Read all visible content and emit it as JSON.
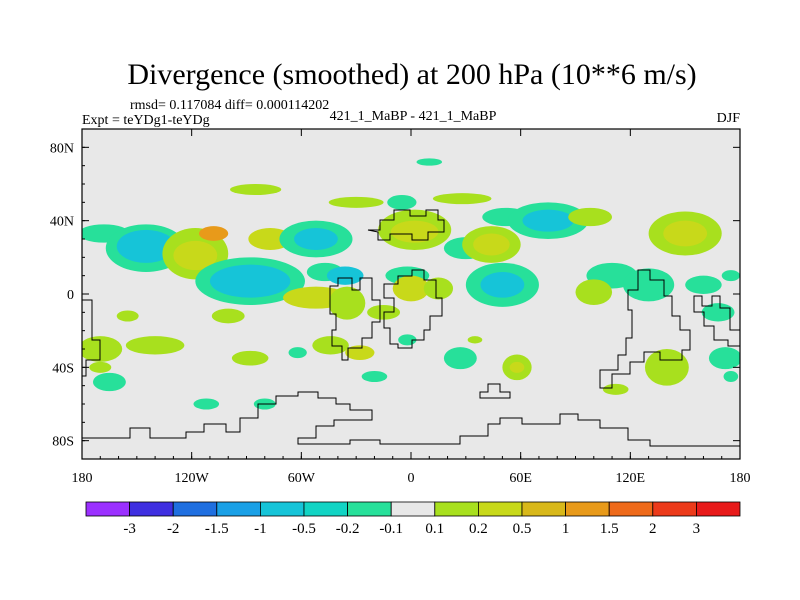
{
  "chart_data": {
    "type": "heatmap",
    "title": "Divergence (smoothed) at 200 hPa (10**6 m/s)",
    "stats_label": "rmsd= 0.117084 diff= 0.000114202",
    "experiment_label": "Expt = teYDg1-teYDg",
    "comparison_label": "421_1_MaBP - 421_1_MaBP",
    "season_label": "DJF",
    "x_range": [
      -180,
      180
    ],
    "y_range": [
      -90,
      90
    ],
    "x_ticks": [
      {
        "value": -180,
        "label": "180"
      },
      {
        "value": -120,
        "label": "120W"
      },
      {
        "value": -60,
        "label": "60W"
      },
      {
        "value": 0,
        "label": "0"
      },
      {
        "value": 60,
        "label": "60E"
      },
      {
        "value": 120,
        "label": "120E"
      },
      {
        "value": 180,
        "label": "180"
      }
    ],
    "y_ticks": [
      {
        "value": 80,
        "label": "80N"
      },
      {
        "value": 40,
        "label": "40N"
      },
      {
        "value": 0,
        "label": "0"
      },
      {
        "value": -40,
        "label": "40S"
      },
      {
        "value": -80,
        "label": "80S"
      }
    ],
    "colorbar": {
      "colors": [
        "#9b30ff",
        "#3f2fe0",
        "#1f6fe0",
        "#1aa0e6",
        "#16c4d8",
        "#11d4c4",
        "#27e09a",
        "#e8e8e8",
        "#a8e01e",
        "#c8d91a",
        "#d8b81a",
        "#e89a1a",
        "#ee6a1a",
        "#ec3a1a",
        "#e81a1a"
      ],
      "boundaries": [
        "-3",
        "-2",
        "-1.5",
        "-1",
        "-0.5",
        "-0.2",
        "-0.1",
        "0.1",
        "0.2",
        "0.5",
        "1",
        "1.5",
        "2",
        "3"
      ]
    },
    "blobs": [
      {
        "lon": -168,
        "lat": 33,
        "rx": 14,
        "ry": 5,
        "color": "#27e09a"
      },
      {
        "lon": -145,
        "lat": 25,
        "rx": 22,
        "ry": 13,
        "color": "#27e09a"
      },
      {
        "lon": -145,
        "lat": 26,
        "rx": 16,
        "ry": 9,
        "color": "#16c4d8"
      },
      {
        "lon": -118,
        "lat": 22,
        "rx": 18,
        "ry": 14,
        "color": "#a8e01e"
      },
      {
        "lon": -118,
        "lat": 21,
        "rx": 12,
        "ry": 8,
        "color": "#c8d91a"
      },
      {
        "lon": -108,
        "lat": 33,
        "rx": 8,
        "ry": 4,
        "color": "#e89a1a"
      },
      {
        "lon": -88,
        "lat": 7,
        "rx": 30,
        "ry": 13,
        "color": "#27e09a"
      },
      {
        "lon": -88,
        "lat": 7,
        "rx": 22,
        "ry": 9,
        "color": "#16c4d8"
      },
      {
        "lon": -77,
        "lat": 30,
        "rx": 12,
        "ry": 6,
        "color": "#c8d91a"
      },
      {
        "lon": -52,
        "lat": 30,
        "rx": 20,
        "ry": 10,
        "color": "#27e09a"
      },
      {
        "lon": -52,
        "lat": 30,
        "rx": 12,
        "ry": 6,
        "color": "#16c4d8"
      },
      {
        "lon": -85,
        "lat": 57,
        "rx": 14,
        "ry": 3,
        "color": "#a8e01e"
      },
      {
        "lon": -30,
        "lat": 50,
        "rx": 15,
        "ry": 3,
        "color": "#a8e01e"
      },
      {
        "lon": -52,
        "lat": -2,
        "rx": 18,
        "ry": 6,
        "color": "#c8d91a"
      },
      {
        "lon": -47,
        "lat": 12,
        "rx": 10,
        "ry": 5,
        "color": "#27e09a"
      },
      {
        "lon": -36,
        "lat": 10,
        "rx": 10,
        "ry": 5,
        "color": "#16c4d8"
      },
      {
        "lon": -35,
        "lat": -5,
        "rx": 10,
        "ry": 9,
        "color": "#a8e01e"
      },
      {
        "lon": -100,
        "lat": -12,
        "rx": 9,
        "ry": 4,
        "color": "#a8e01e"
      },
      {
        "lon": -155,
        "lat": -12,
        "rx": 6,
        "ry": 3,
        "color": "#a8e01e"
      },
      {
        "lon": -170,
        "lat": -30,
        "rx": 12,
        "ry": 7,
        "color": "#a8e01e"
      },
      {
        "lon": -140,
        "lat": -28,
        "rx": 16,
        "ry": 5,
        "color": "#a8e01e"
      },
      {
        "lon": -165,
        "lat": -48,
        "rx": 9,
        "ry": 5,
        "color": "#27e09a"
      },
      {
        "lon": -170,
        "lat": -40,
        "rx": 6,
        "ry": 3,
        "color": "#a8e01e"
      },
      {
        "lon": -88,
        "lat": -35,
        "rx": 10,
        "ry": 4,
        "color": "#a8e01e"
      },
      {
        "lon": -62,
        "lat": -32,
        "rx": 5,
        "ry": 3,
        "color": "#27e09a"
      },
      {
        "lon": -44,
        "lat": -28,
        "rx": 10,
        "ry": 5,
        "color": "#a8e01e"
      },
      {
        "lon": -28,
        "lat": -32,
        "rx": 8,
        "ry": 4,
        "color": "#c8d91a"
      },
      {
        "lon": 2,
        "lat": 35,
        "rx": 20,
        "ry": 11,
        "color": "#a8e01e"
      },
      {
        "lon": 2,
        "lat": 34,
        "rx": 13,
        "ry": 6,
        "color": "#c8d91a"
      },
      {
        "lon": -2,
        "lat": 10,
        "rx": 12,
        "ry": 5,
        "color": "#27e09a"
      },
      {
        "lon": -15,
        "lat": -10,
        "rx": 9,
        "ry": 4,
        "color": "#a8e01e"
      },
      {
        "lon": 0,
        "lat": 3,
        "rx": 10,
        "ry": 7,
        "color": "#c8d91a"
      },
      {
        "lon": 15,
        "lat": 3,
        "rx": 8,
        "ry": 6,
        "color": "#a8e01e"
      },
      {
        "lon": -2,
        "lat": -25,
        "rx": 5,
        "ry": 3,
        "color": "#27e09a"
      },
      {
        "lon": -5,
        "lat": 50,
        "rx": 8,
        "ry": 4,
        "color": "#27e09a"
      },
      {
        "lon": 10,
        "lat": 72,
        "rx": 7,
        "ry": 2,
        "color": "#27e09a"
      },
      {
        "lon": 28,
        "lat": 52,
        "rx": 16,
        "ry": 3,
        "color": "#a8e01e"
      },
      {
        "lon": 30,
        "lat": 25,
        "rx": 12,
        "ry": 6,
        "color": "#27e09a"
      },
      {
        "lon": 44,
        "lat": 27,
        "rx": 16,
        "ry": 10,
        "color": "#a8e01e"
      },
      {
        "lon": 44,
        "lat": 27,
        "rx": 10,
        "ry": 6,
        "color": "#c8d91a"
      },
      {
        "lon": 50,
        "lat": 5,
        "rx": 20,
        "ry": 12,
        "color": "#27e09a"
      },
      {
        "lon": 50,
        "lat": 5,
        "rx": 12,
        "ry": 7,
        "color": "#16c4d8"
      },
      {
        "lon": 52,
        "lat": 42,
        "rx": 13,
        "ry": 5,
        "color": "#27e09a"
      },
      {
        "lon": 75,
        "lat": 40,
        "rx": 22,
        "ry": 10,
        "color": "#27e09a"
      },
      {
        "lon": 75,
        "lat": 40,
        "rx": 14,
        "ry": 6,
        "color": "#16c4d8"
      },
      {
        "lon": 98,
        "lat": 42,
        "rx": 12,
        "ry": 5,
        "color": "#a8e01e"
      },
      {
        "lon": 110,
        "lat": 10,
        "rx": 14,
        "ry": 7,
        "color": "#27e09a"
      },
      {
        "lon": 100,
        "lat": 1,
        "rx": 10,
        "ry": 7,
        "color": "#a8e01e"
      },
      {
        "lon": 130,
        "lat": 5,
        "rx": 14,
        "ry": 9,
        "color": "#27e09a"
      },
      {
        "lon": 150,
        "lat": 33,
        "rx": 20,
        "ry": 12,
        "color": "#a8e01e"
      },
      {
        "lon": 150,
        "lat": 33,
        "rx": 12,
        "ry": 7,
        "color": "#c8d91a"
      },
      {
        "lon": 160,
        "lat": 5,
        "rx": 10,
        "ry": 5,
        "color": "#27e09a"
      },
      {
        "lon": 175,
        "lat": 10,
        "rx": 5,
        "ry": 3,
        "color": "#27e09a"
      },
      {
        "lon": 168,
        "lat": -10,
        "rx": 9,
        "ry": 5,
        "color": "#27e09a"
      },
      {
        "lon": 140,
        "lat": -40,
        "rx": 12,
        "ry": 10,
        "color": "#a8e01e"
      },
      {
        "lon": 172,
        "lat": -35,
        "rx": 9,
        "ry": 6,
        "color": "#27e09a"
      },
      {
        "lon": 112,
        "lat": -52,
        "rx": 7,
        "ry": 3,
        "color": "#a8e01e"
      },
      {
        "lon": 58,
        "lat": -40,
        "rx": 8,
        "ry": 7,
        "color": "#a8e01e"
      },
      {
        "lon": 58,
        "lat": -40,
        "rx": 4,
        "ry": 3,
        "color": "#c8d91a"
      },
      {
        "lon": 27,
        "lat": -35,
        "rx": 9,
        "ry": 6,
        "color": "#27e09a"
      },
      {
        "lon": -20,
        "lat": -45,
        "rx": 7,
        "ry": 3,
        "color": "#27e09a"
      },
      {
        "lon": 35,
        "lat": -25,
        "rx": 4,
        "ry": 2,
        "color": "#a8e01e"
      },
      {
        "lon": -112,
        "lat": -60,
        "rx": 7,
        "ry": 3,
        "color": "#27e09a"
      },
      {
        "lon": -80,
        "lat": -60,
        "rx": 6,
        "ry": 3,
        "color": "#27e09a"
      },
      {
        "lon": 175,
        "lat": -45,
        "rx": 4,
        "ry": 3,
        "color": "#27e09a"
      }
    ]
  }
}
